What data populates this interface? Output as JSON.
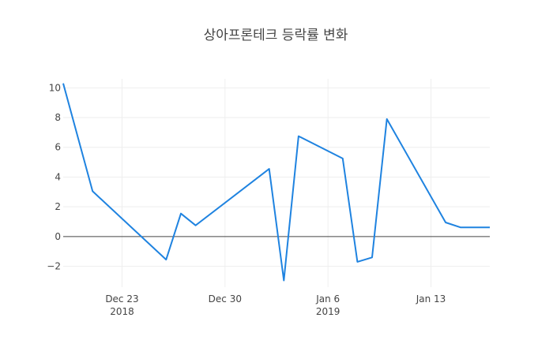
{
  "chart_data": {
    "type": "line",
    "title": "상아프론테크 등락률 변화",
    "xlabel": "",
    "ylabel": "",
    "x_type": "date",
    "xlim": [
      "2018-12-19",
      "2019-01-17"
    ],
    "ylim": [
      -3.4,
      10.6
    ],
    "y_ticks": [
      10,
      8,
      6,
      4,
      2,
      0,
      -2
    ],
    "y_tick_labels": [
      "10",
      "8",
      "6",
      "4",
      "2",
      "0",
      "−2"
    ],
    "x_ticks": [
      {
        "date": "2018-12-23",
        "label": "Dec 23",
        "sublabel": "2018"
      },
      {
        "date": "2018-12-30",
        "label": "Dec 30",
        "sublabel": ""
      },
      {
        "date": "2019-01-06",
        "label": "Jan 6",
        "sublabel": "2019"
      },
      {
        "date": "2019-01-13",
        "label": "Jan 13",
        "sublabel": ""
      }
    ],
    "grid": true,
    "zero_line": true,
    "line_color": "#1f83e0",
    "series": [
      {
        "x": [
          "2018-12-19",
          "2018-12-21",
          "2018-12-26",
          "2018-12-27",
          "2018-12-28",
          "2019-01-02",
          "2019-01-03",
          "2019-01-04",
          "2019-01-07",
          "2019-01-08",
          "2019-01-09",
          "2019-01-10",
          "2019-01-14",
          "2019-01-15",
          "2019-01-16",
          "2019-01-17"
        ],
        "y": [
          10.3,
          3.05,
          -1.55,
          1.55,
          0.75,
          4.55,
          -2.95,
          6.75,
          5.25,
          -1.7,
          -1.4,
          7.9,
          0.95,
          0.62,
          0.62,
          0.62
        ]
      }
    ]
  }
}
